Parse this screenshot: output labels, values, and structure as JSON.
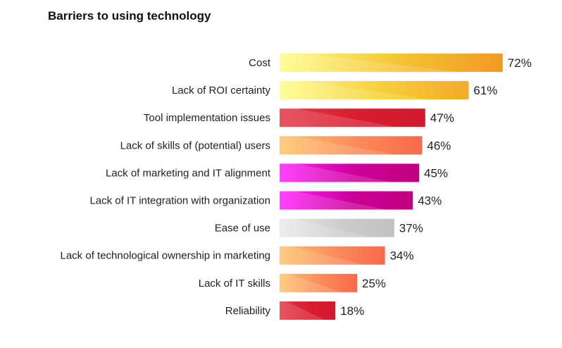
{
  "chart_data": {
    "type": "bar",
    "orientation": "horizontal",
    "title": "Barriers to using technology",
    "xlabel": "",
    "ylabel": "",
    "xlim": [
      0,
      100
    ],
    "grid": false,
    "legend": "none",
    "categories": [
      "Cost",
      "Lack of ROI certainty",
      "Tool implementation issues",
      "Lack of skills of (potential) users",
      "Lack of marketing and IT alignment",
      "Lack of IT integration with organization",
      "Ease of use",
      "Lack of technological ownership in marketing",
      "Lack of IT skills",
      "Reliability"
    ],
    "values": [
      72,
      61,
      47,
      46,
      45,
      43,
      37,
      34,
      25,
      18
    ],
    "value_labels": [
      "72%",
      "61%",
      "47%",
      "46%",
      "45%",
      "43%",
      "37%",
      "34%",
      "25%",
      "18%"
    ],
    "bar_colors": [
      [
        "#fefe8a",
        "#f4c232",
        "#f09a22"
      ],
      [
        "#fefe8a",
        "#f6cf3a",
        "#f4a92b"
      ],
      [
        "#e23a44",
        "#d81c2e",
        "#d01a2e"
      ],
      [
        "#ffc46a",
        "#fc8a5a",
        "#f86a4a"
      ],
      [
        "#ff22ff",
        "#cc0099",
        "#c0007f"
      ],
      [
        "#ff22ff",
        "#cc0099",
        "#c0007f"
      ],
      [
        "#ebebeb",
        "#cccccc",
        "#c2c2c2"
      ],
      [
        "#ffc46a",
        "#fc8a5a",
        "#f86a4a"
      ],
      [
        "#ffc46a",
        "#fc8a5a",
        "#f86a4a"
      ],
      [
        "#e23a44",
        "#d81c2e",
        "#d01a2e"
      ]
    ]
  }
}
